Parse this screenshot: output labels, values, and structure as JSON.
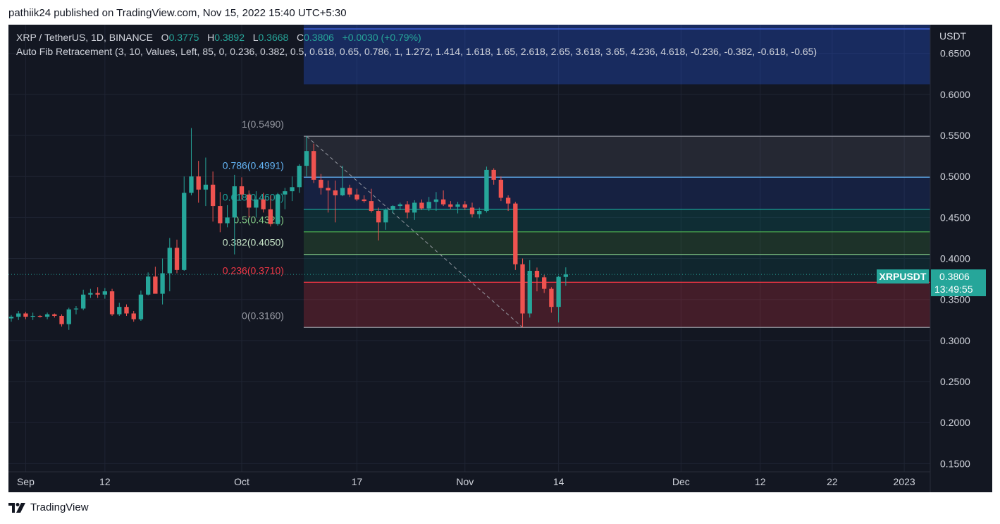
{
  "header": {
    "publisher": "pathiik24",
    "published_text": "pathiik24 published on TradingView.com, Nov 15, 2022 15:40 UTC+5:30"
  },
  "legend": {
    "symbol_text": "XRP / TetherUS, 1D, BINANCE",
    "o_label": "O",
    "o_value": "0.3775",
    "h_label": "H",
    "h_value": "0.3892",
    "l_label": "L",
    "l_value": "0.3668",
    "c_label": "C",
    "c_value": "0.3806",
    "change": "+0.0030 (+0.79%)",
    "indicator": "Auto Fib Retracement (3, 10, Values, Left, 85, 0, 0.236, 0.382, 0.5, 0.618, 0.65, 0.786, 1, 1.272, 1.414, 1.618, 1.65, 2.618, 2.65, 3.618, 3.65, 4.236, 4.618, -0.236, -0.382, -0.618, -0.65)"
  },
  "price_tag": {
    "symbol": "XRPUSDT",
    "price": "0.3806",
    "countdown": "13:49:55"
  },
  "footer": {
    "brand": "TradingView",
    "logo_icon": "tradingview-logo-icon"
  },
  "colors": {
    "background": "#131722",
    "up": "#26a69a",
    "down": "#ef5350",
    "grid": "#1f2433",
    "text": "#d1d4dc"
  },
  "chart_data": {
    "type": "candlestick",
    "y_unit": "USDT",
    "ylim": [
      0.14,
      0.685
    ],
    "y_ticks": [
      "0.6500",
      "0.6000",
      "0.5500",
      "0.5000",
      "0.4500",
      "0.4000",
      "0.3500",
      "0.3000",
      "0.2500",
      "0.2000",
      "0.1500"
    ],
    "x_ticks": [
      {
        "label": "Sep",
        "date": "2022-09-01"
      },
      {
        "label": "12",
        "date": "2022-09-12"
      },
      {
        "label": "Oct",
        "date": "2022-10-01"
      },
      {
        "label": "17",
        "date": "2022-10-17"
      },
      {
        "label": "Nov",
        "date": "2022-11-01"
      },
      {
        "label": "14",
        "date": "2022-11-14"
      },
      {
        "label": "Dec",
        "date": "2022-12-01"
      },
      {
        "label": "12",
        "date": "2022-12-12"
      },
      {
        "label": "22",
        "date": "2022-12-22"
      },
      {
        "label": "2023",
        "date": "2023-01-01"
      }
    ],
    "x_range": [
      "2022-08-30",
      "2023-01-05"
    ],
    "fib_levels": [
      {
        "label": "1(0.5490)",
        "ratio": 1,
        "price": 0.549
      },
      {
        "label": "0.786(0.4991)",
        "ratio": 0.786,
        "price": 0.4991
      },
      {
        "label": "0.618(0.4600)",
        "ratio": 0.618,
        "price": 0.46
      },
      {
        "label": "0.5(0.4325)",
        "ratio": 0.5,
        "price": 0.4325
      },
      {
        "label": "0.382(0.4050)",
        "ratio": 0.382,
        "price": 0.405
      },
      {
        "label": "0.236(0.3710)",
        "ratio": 0.236,
        "price": 0.371
      },
      {
        "label": "0(0.3160)",
        "ratio": 0,
        "price": 0.316
      }
    ],
    "fib_start_date": "2022-10-10",
    "fib_trend": {
      "from_date": "2022-10-10",
      "from_price": 0.549,
      "to_date": "2022-11-09",
      "to_price": 0.316
    },
    "last_price": 0.3806,
    "candles": [
      {
        "d": "2022-08-30",
        "o": 0.327,
        "h": 0.331,
        "l": 0.323,
        "c": 0.329
      },
      {
        "d": "2022-08-31",
        "o": 0.329,
        "h": 0.336,
        "l": 0.325,
        "c": 0.333
      },
      {
        "d": "2022-09-01",
        "o": 0.333,
        "h": 0.335,
        "l": 0.326,
        "c": 0.329
      },
      {
        "d": "2022-09-02",
        "o": 0.329,
        "h": 0.334,
        "l": 0.325,
        "c": 0.33
      },
      {
        "d": "2022-09-03",
        "o": 0.33,
        "h": 0.331,
        "l": 0.328,
        "c": 0.329
      },
      {
        "d": "2022-09-04",
        "o": 0.329,
        "h": 0.334,
        "l": 0.326,
        "c": 0.332
      },
      {
        "d": "2022-09-05",
        "o": 0.332,
        "h": 0.333,
        "l": 0.328,
        "c": 0.33
      },
      {
        "d": "2022-09-06",
        "o": 0.33,
        "h": 0.332,
        "l": 0.317,
        "c": 0.32
      },
      {
        "d": "2022-09-07",
        "o": 0.32,
        "h": 0.34,
        "l": 0.313,
        "c": 0.338
      },
      {
        "d": "2022-09-08",
        "o": 0.338,
        "h": 0.342,
        "l": 0.332,
        "c": 0.339
      },
      {
        "d": "2022-09-09",
        "o": 0.339,
        "h": 0.362,
        "l": 0.337,
        "c": 0.356
      },
      {
        "d": "2022-09-10",
        "o": 0.356,
        "h": 0.363,
        "l": 0.352,
        "c": 0.358
      },
      {
        "d": "2022-09-11",
        "o": 0.358,
        "h": 0.365,
        "l": 0.352,
        "c": 0.356
      },
      {
        "d": "2022-09-12",
        "o": 0.356,
        "h": 0.364,
        "l": 0.351,
        "c": 0.36
      },
      {
        "d": "2022-09-13",
        "o": 0.36,
        "h": 0.363,
        "l": 0.33,
        "c": 0.332
      },
      {
        "d": "2022-09-14",
        "o": 0.332,
        "h": 0.346,
        "l": 0.33,
        "c": 0.341
      },
      {
        "d": "2022-09-15",
        "o": 0.341,
        "h": 0.344,
        "l": 0.33,
        "c": 0.333
      },
      {
        "d": "2022-09-16",
        "o": 0.333,
        "h": 0.336,
        "l": 0.323,
        "c": 0.326
      },
      {
        "d": "2022-09-17",
        "o": 0.326,
        "h": 0.361,
        "l": 0.324,
        "c": 0.356
      },
      {
        "d": "2022-09-18",
        "o": 0.356,
        "h": 0.383,
        "l": 0.355,
        "c": 0.378
      },
      {
        "d": "2022-09-19",
        "o": 0.378,
        "h": 0.39,
        "l": 0.358,
        "c": 0.357
      },
      {
        "d": "2022-09-20",
        "o": 0.357,
        "h": 0.4,
        "l": 0.344,
        "c": 0.382
      },
      {
        "d": "2022-09-21",
        "o": 0.382,
        "h": 0.425,
        "l": 0.36,
        "c": 0.413
      },
      {
        "d": "2022-09-22",
        "o": 0.413,
        "h": 0.423,
        "l": 0.382,
        "c": 0.386
      },
      {
        "d": "2022-09-23",
        "o": 0.386,
        "h": 0.5,
        "l": 0.385,
        "c": 0.48
      },
      {
        "d": "2022-09-24",
        "o": 0.48,
        "h": 0.559,
        "l": 0.477,
        "c": 0.5
      },
      {
        "d": "2022-09-25",
        "o": 0.5,
        "h": 0.519,
        "l": 0.468,
        "c": 0.484
      },
      {
        "d": "2022-09-26",
        "o": 0.484,
        "h": 0.523,
        "l": 0.464,
        "c": 0.49
      },
      {
        "d": "2022-09-27",
        "o": 0.49,
        "h": 0.506,
        "l": 0.445,
        "c": 0.464
      },
      {
        "d": "2022-09-28",
        "o": 0.464,
        "h": 0.481,
        "l": 0.432,
        "c": 0.443
      },
      {
        "d": "2022-09-29",
        "o": 0.443,
        "h": 0.465,
        "l": 0.438,
        "c": 0.45
      },
      {
        "d": "2022-09-30",
        "o": 0.45,
        "h": 0.502,
        "l": 0.405,
        "c": 0.488
      },
      {
        "d": "2022-10-01",
        "o": 0.488,
        "h": 0.499,
        "l": 0.472,
        "c": 0.478
      },
      {
        "d": "2022-10-02",
        "o": 0.478,
        "h": 0.483,
        "l": 0.45,
        "c": 0.462
      },
      {
        "d": "2022-10-03",
        "o": 0.462,
        "h": 0.482,
        "l": 0.45,
        "c": 0.472
      },
      {
        "d": "2022-10-04",
        "o": 0.472,
        "h": 0.48,
        "l": 0.456,
        "c": 0.46
      },
      {
        "d": "2022-10-05",
        "o": 0.46,
        "h": 0.477,
        "l": 0.439,
        "c": 0.442
      },
      {
        "d": "2022-10-06",
        "o": 0.442,
        "h": 0.48,
        "l": 0.44,
        "c": 0.478
      },
      {
        "d": "2022-10-07",
        "o": 0.478,
        "h": 0.486,
        "l": 0.46,
        "c": 0.482
      },
      {
        "d": "2022-10-08",
        "o": 0.482,
        "h": 0.5,
        "l": 0.47,
        "c": 0.487
      },
      {
        "d": "2022-10-09",
        "o": 0.487,
        "h": 0.515,
        "l": 0.48,
        "c": 0.513
      },
      {
        "d": "2022-10-10",
        "o": 0.513,
        "h": 0.549,
        "l": 0.5,
        "c": 0.531
      },
      {
        "d": "2022-10-11",
        "o": 0.531,
        "h": 0.54,
        "l": 0.492,
        "c": 0.496
      },
      {
        "d": "2022-10-12",
        "o": 0.496,
        "h": 0.503,
        "l": 0.478,
        "c": 0.486
      },
      {
        "d": "2022-10-13",
        "o": 0.486,
        "h": 0.495,
        "l": 0.456,
        "c": 0.483
      },
      {
        "d": "2022-10-14",
        "o": 0.483,
        "h": 0.495,
        "l": 0.444,
        "c": 0.477
      },
      {
        "d": "2022-10-15",
        "o": 0.477,
        "h": 0.513,
        "l": 0.476,
        "c": 0.486
      },
      {
        "d": "2022-10-16",
        "o": 0.486,
        "h": 0.49,
        "l": 0.475,
        "c": 0.478
      },
      {
        "d": "2022-10-17",
        "o": 0.478,
        "h": 0.485,
        "l": 0.47,
        "c": 0.472
      },
      {
        "d": "2022-10-18",
        "o": 0.472,
        "h": 0.477,
        "l": 0.468,
        "c": 0.47
      },
      {
        "d": "2022-10-19",
        "o": 0.47,
        "h": 0.485,
        "l": 0.456,
        "c": 0.458
      },
      {
        "d": "2022-10-20",
        "o": 0.458,
        "h": 0.462,
        "l": 0.422,
        "c": 0.444
      },
      {
        "d": "2022-10-21",
        "o": 0.444,
        "h": 0.461,
        "l": 0.435,
        "c": 0.459
      },
      {
        "d": "2022-10-22",
        "o": 0.459,
        "h": 0.465,
        "l": 0.455,
        "c": 0.464
      },
      {
        "d": "2022-10-23",
        "o": 0.464,
        "h": 0.468,
        "l": 0.459,
        "c": 0.466
      },
      {
        "d": "2022-10-24",
        "o": 0.466,
        "h": 0.47,
        "l": 0.449,
        "c": 0.456
      },
      {
        "d": "2022-10-25",
        "o": 0.456,
        "h": 0.471,
        "l": 0.447,
        "c": 0.468
      },
      {
        "d": "2022-10-26",
        "o": 0.468,
        "h": 0.472,
        "l": 0.459,
        "c": 0.461
      },
      {
        "d": "2022-10-27",
        "o": 0.461,
        "h": 0.475,
        "l": 0.458,
        "c": 0.469
      },
      {
        "d": "2022-10-28",
        "o": 0.469,
        "h": 0.481,
        "l": 0.458,
        "c": 0.472
      },
      {
        "d": "2022-10-29",
        "o": 0.472,
        "h": 0.483,
        "l": 0.464,
        "c": 0.466
      },
      {
        "d": "2022-10-30",
        "o": 0.466,
        "h": 0.47,
        "l": 0.46,
        "c": 0.463
      },
      {
        "d": "2022-10-31",
        "o": 0.463,
        "h": 0.469,
        "l": 0.455,
        "c": 0.466
      },
      {
        "d": "2022-11-01",
        "o": 0.466,
        "h": 0.47,
        "l": 0.459,
        "c": 0.462
      },
      {
        "d": "2022-11-02",
        "o": 0.462,
        "h": 0.468,
        "l": 0.45,
        "c": 0.454
      },
      {
        "d": "2022-11-03",
        "o": 0.454,
        "h": 0.462,
        "l": 0.449,
        "c": 0.458
      },
      {
        "d": "2022-11-04",
        "o": 0.458,
        "h": 0.512,
        "l": 0.456,
        "c": 0.508
      },
      {
        "d": "2022-11-05",
        "o": 0.508,
        "h": 0.51,
        "l": 0.49,
        "c": 0.496
      },
      {
        "d": "2022-11-06",
        "o": 0.496,
        "h": 0.5,
        "l": 0.47,
        "c": 0.474
      },
      {
        "d": "2022-11-07",
        "o": 0.474,
        "h": 0.477,
        "l": 0.458,
        "c": 0.467
      },
      {
        "d": "2022-11-08",
        "o": 0.467,
        "h": 0.469,
        "l": 0.386,
        "c": 0.393
      },
      {
        "d": "2022-11-09",
        "o": 0.393,
        "h": 0.4,
        "l": 0.316,
        "c": 0.333
      },
      {
        "d": "2022-11-10",
        "o": 0.333,
        "h": 0.398,
        "l": 0.328,
        "c": 0.385
      },
      {
        "d": "2022-11-11",
        "o": 0.385,
        "h": 0.389,
        "l": 0.36,
        "c": 0.377
      },
      {
        "d": "2022-11-12",
        "o": 0.377,
        "h": 0.38,
        "l": 0.358,
        "c": 0.363
      },
      {
        "d": "2022-11-13",
        "o": 0.363,
        "h": 0.365,
        "l": 0.334,
        "c": 0.341
      },
      {
        "d": "2022-11-14",
        "o": 0.341,
        "h": 0.379,
        "l": 0.322,
        "c": 0.3776
      },
      {
        "d": "2022-11-15",
        "o": 0.3775,
        "h": 0.3892,
        "l": 0.3668,
        "c": 0.3806
      }
    ]
  }
}
